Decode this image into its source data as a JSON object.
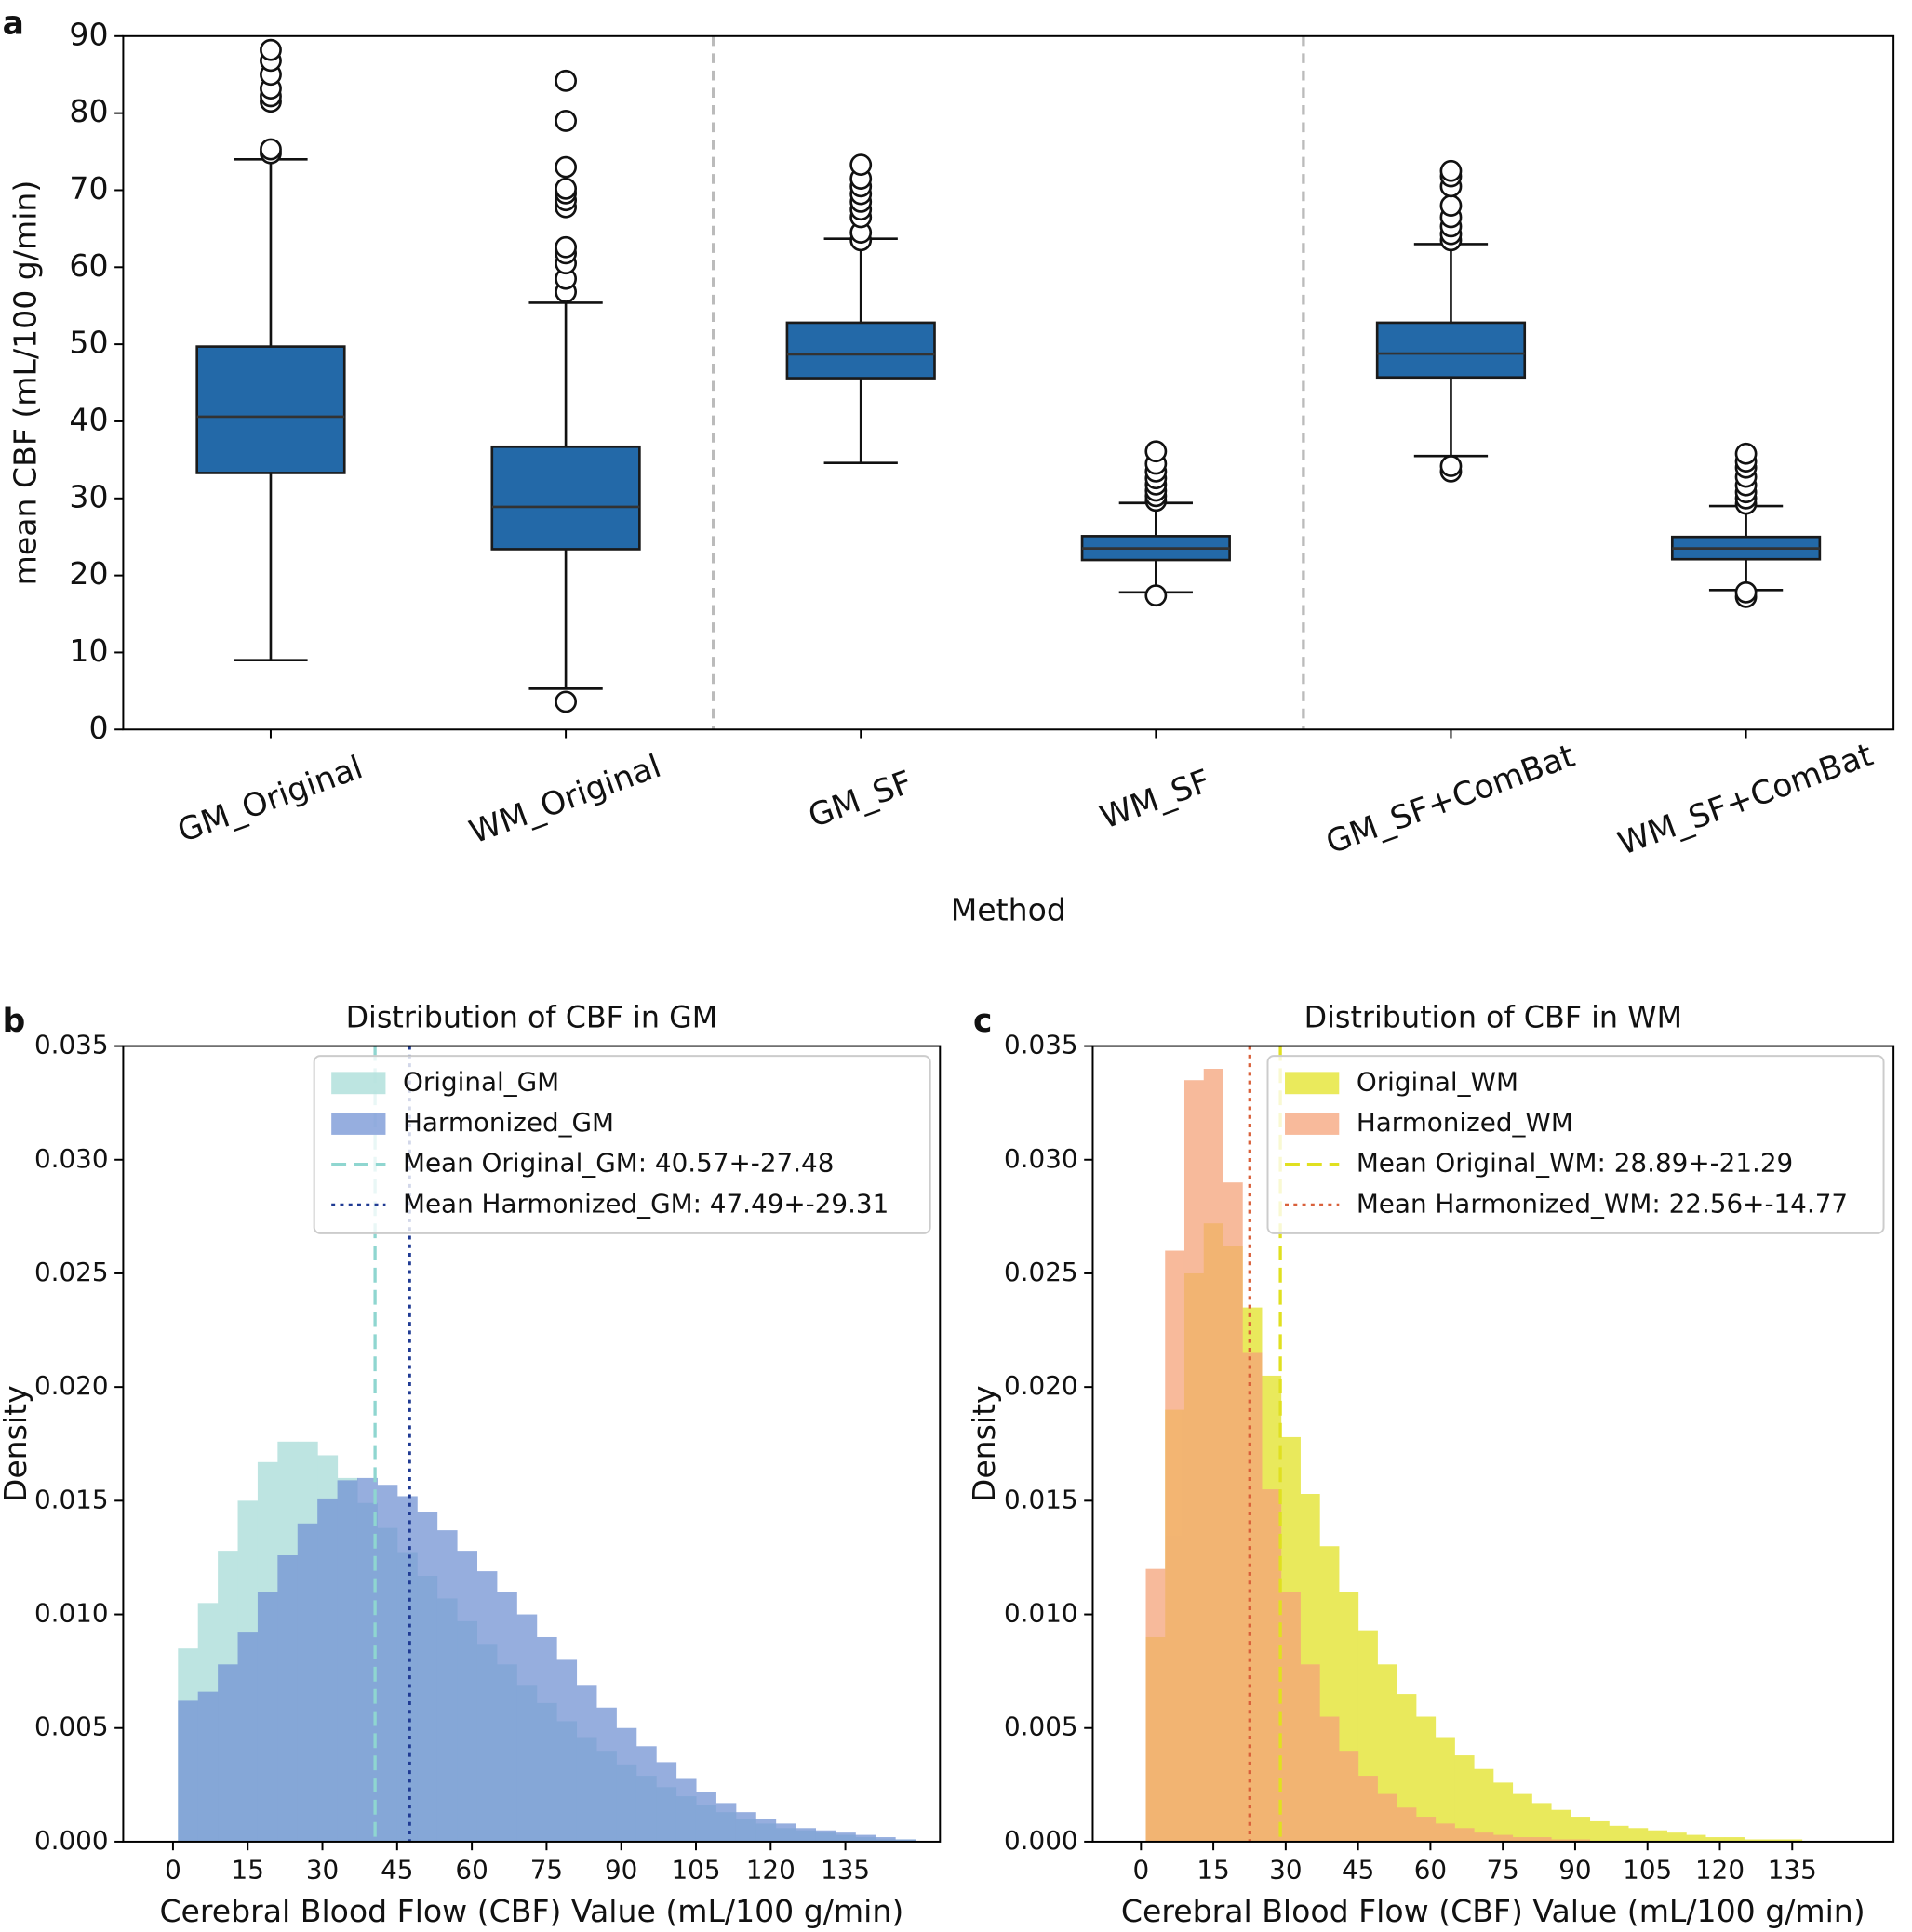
{
  "chart_data": [
    {
      "type": "box",
      "panel": "a",
      "xlabel": "Method",
      "ylabel": "mean CBF (mL/100 g/min)",
      "color": "#2369a8",
      "categories": [
        "GM_Original",
        "WM_Original",
        "GM_SF",
        "WM_SF",
        "GM_SF+ComBat",
        "WM_SF+ComBat"
      ],
      "boxes": [
        {
          "whislo": 9,
          "q1": 33.3,
          "med": 40.6,
          "q3": 49.7,
          "whishi": 74,
          "fliers": [
            74.8,
            75.3,
            81.5,
            82.2,
            83.2,
            85,
            86.8,
            88.2
          ]
        },
        {
          "whislo": 5.3,
          "q1": 23.4,
          "med": 28.9,
          "q3": 36.7,
          "whishi": 55.4,
          "fliers": [
            3.6,
            56.8,
            58.5,
            60.5,
            61.8,
            62.6,
            67.8,
            68.7,
            69.6,
            70.2,
            73,
            79,
            84.2
          ]
        },
        {
          "whislo": 34.6,
          "q1": 45.6,
          "med": 48.7,
          "q3": 52.8,
          "whishi": 63.7,
          "fliers": [
            63.5,
            64.5,
            66.5,
            67.5,
            68.5,
            69.5,
            70.5,
            71.5,
            73.3
          ]
        },
        {
          "whislo": 17.8,
          "q1": 22,
          "med": 23.5,
          "q3": 25.1,
          "whishi": 29.4,
          "fliers": [
            17.4,
            29.7,
            30.3,
            31,
            31.8,
            32.6,
            33.5,
            34.5,
            36.1
          ]
        },
        {
          "whislo": 35.5,
          "q1": 45.7,
          "med": 48.8,
          "q3": 52.8,
          "whishi": 63,
          "fliers": [
            33.5,
            34.2,
            63.5,
            64.3,
            65.3,
            66.5,
            68,
            70.5,
            71.8,
            72.5
          ]
        },
        {
          "whislo": 18.1,
          "q1": 22.1,
          "med": 23.5,
          "q3": 25,
          "whishi": 29,
          "fliers": [
            17.2,
            17.8,
            29.3,
            30,
            30.8,
            31.7,
            32.8,
            34,
            34.8,
            35.8
          ]
        }
      ],
      "ylim": [
        0,
        90
      ],
      "yticks": [
        0,
        10,
        20,
        30,
        40,
        50,
        60,
        70,
        80,
        90
      ]
    },
    {
      "type": "histogram",
      "panel": "b",
      "title": "Distribution of CBF in GM",
      "xlabel": "Cerebral Blood Flow (CBF) Value (mL/100 g/min)",
      "ylabel": "Density",
      "bins": [
        1,
        5,
        9,
        13,
        17,
        21,
        25,
        29,
        33,
        37,
        41,
        45,
        49,
        53,
        57,
        61,
        65,
        69,
        73,
        77,
        81,
        85,
        89,
        93,
        97,
        101,
        105,
        109,
        113,
        117,
        121,
        125,
        129,
        133,
        137,
        141,
        145,
        149
      ],
      "series": [
        {
          "name": "Original_GM",
          "color": "#b2e0dc",
          "values": [
            0.0085,
            0.0105,
            0.0128,
            0.015,
            0.0167,
            0.0176,
            0.0176,
            0.017,
            0.016,
            0.0149,
            0.0138,
            0.0127,
            0.0117,
            0.0107,
            0.0097,
            0.0087,
            0.0078,
            0.0069,
            0.0061,
            0.0053,
            0.0046,
            0.004,
            0.0034,
            0.0029,
            0.0024,
            0.002,
            0.0016,
            0.0013,
            0.001,
            0.0008,
            0.0006,
            0.0005,
            0.0004,
            0.0003,
            0.0002,
            0.0001,
            0.0001
          ]
        },
        {
          "name": "Harmonized_GM",
          "color": "#7393d4",
          "values": [
            0.0062,
            0.0066,
            0.0078,
            0.0092,
            0.011,
            0.0126,
            0.014,
            0.0151,
            0.0159,
            0.016,
            0.0157,
            0.0152,
            0.0145,
            0.0137,
            0.0128,
            0.0119,
            0.011,
            0.01,
            0.009,
            0.008,
            0.0069,
            0.0059,
            0.005,
            0.0042,
            0.0035,
            0.0028,
            0.0022,
            0.0017,
            0.0013,
            0.001,
            0.0008,
            0.0006,
            0.0005,
            0.0004,
            0.0003,
            0.0002,
            0.0001
          ]
        }
      ],
      "mean_lines": [
        {
          "label": "Mean Original_GM: 40.57+-27.48",
          "x": 40.57,
          "color": "#8fd6d0",
          "linestyle": "dashed"
        },
        {
          "label": "Mean Harmonized_GM: 47.49+-29.31",
          "x": 47.49,
          "color": "#1f3a93",
          "linestyle": "dotted"
        }
      ],
      "xlim": [
        -10,
        154
      ],
      "xticks": [
        0,
        15,
        30,
        45,
        60,
        75,
        90,
        105,
        120,
        135
      ],
      "ylim": [
        0,
        0.035
      ],
      "yticks": [
        {
          "value": 0,
          "label": "0.000"
        },
        {
          "value": 0.005,
          "label": "0.005"
        },
        {
          "value": 0.01,
          "label": "0.010"
        },
        {
          "value": 0.015,
          "label": "0.015"
        },
        {
          "value": 0.02,
          "label": "0.020"
        },
        {
          "value": 0.025,
          "label": "0.025"
        },
        {
          "value": 0.03,
          "label": "0.030"
        },
        {
          "value": 0.035,
          "label": "0.035"
        }
      ],
      "legend": "upper right"
    },
    {
      "type": "histogram",
      "panel": "c",
      "title": "Distribution of CBF in WM",
      "xlabel": "Cerebral Blood Flow (CBF) Value (mL/100 g/min)",
      "ylabel": "Density",
      "bins": [
        1,
        5,
        9,
        13,
        17,
        21,
        25,
        29,
        33,
        37,
        41,
        45,
        49,
        53,
        57,
        61,
        65,
        69,
        73,
        77,
        81,
        85,
        89,
        93,
        97,
        101,
        105,
        109,
        113,
        117,
        121,
        125,
        129,
        133,
        137,
        141,
        145,
        149
      ],
      "series": [
        {
          "name": "Original_WM",
          "color": "#e6e640",
          "values": [
            0.009,
            0.019,
            0.025,
            0.0272,
            0.0262,
            0.0235,
            0.0205,
            0.0178,
            0.0153,
            0.013,
            0.011,
            0.0093,
            0.0078,
            0.0065,
            0.0055,
            0.0046,
            0.0038,
            0.0032,
            0.0026,
            0.0021,
            0.0017,
            0.0014,
            0.0011,
            0.0009,
            0.0007,
            0.0006,
            0.0005,
            0.0004,
            0.0003,
            0.0002,
            0.0002,
            0.0001,
            0.0001,
            0.0001,
            0,
            0,
            0
          ]
        },
        {
          "name": "Harmonized_WM",
          "color": "#f5a37a",
          "values": [
            0.012,
            0.026,
            0.0335,
            0.034,
            0.029,
            0.0215,
            0.0155,
            0.011,
            0.0078,
            0.0055,
            0.004,
            0.0029,
            0.0021,
            0.0015,
            0.0011,
            0.0008,
            0.0006,
            0.0004,
            0.0003,
            0.0002,
            0.0002,
            0.0001,
            0.0001,
            0,
            0,
            0,
            0,
            0,
            0,
            0,
            0,
            0,
            0,
            0,
            0,
            0,
            0
          ]
        }
      ],
      "mean_lines": [
        {
          "label": "Mean Original_WM: 28.89+-21.29",
          "x": 28.89,
          "color": "#e0e020",
          "linestyle": "dashed"
        },
        {
          "label": "Mean Harmonized_WM: 22.56+-14.77",
          "x": 22.56,
          "color": "#d9603a",
          "linestyle": "dotted"
        }
      ],
      "xlim": [
        -10,
        156
      ],
      "xticks": [
        0,
        15,
        30,
        45,
        60,
        75,
        90,
        105,
        120,
        135
      ],
      "ylim": [
        0,
        0.035
      ],
      "yticks": [
        {
          "value": 0,
          "label": "0.000"
        },
        {
          "value": 0.005,
          "label": "0.005"
        },
        {
          "value": 0.01,
          "label": "0.010"
        },
        {
          "value": 0.015,
          "label": "0.015"
        },
        {
          "value": 0.02,
          "label": "0.020"
        },
        {
          "value": 0.025,
          "label": "0.025"
        },
        {
          "value": 0.03,
          "label": "0.030"
        },
        {
          "value": 0.035,
          "label": "0.035"
        }
      ],
      "legend": "upper right"
    }
  ]
}
